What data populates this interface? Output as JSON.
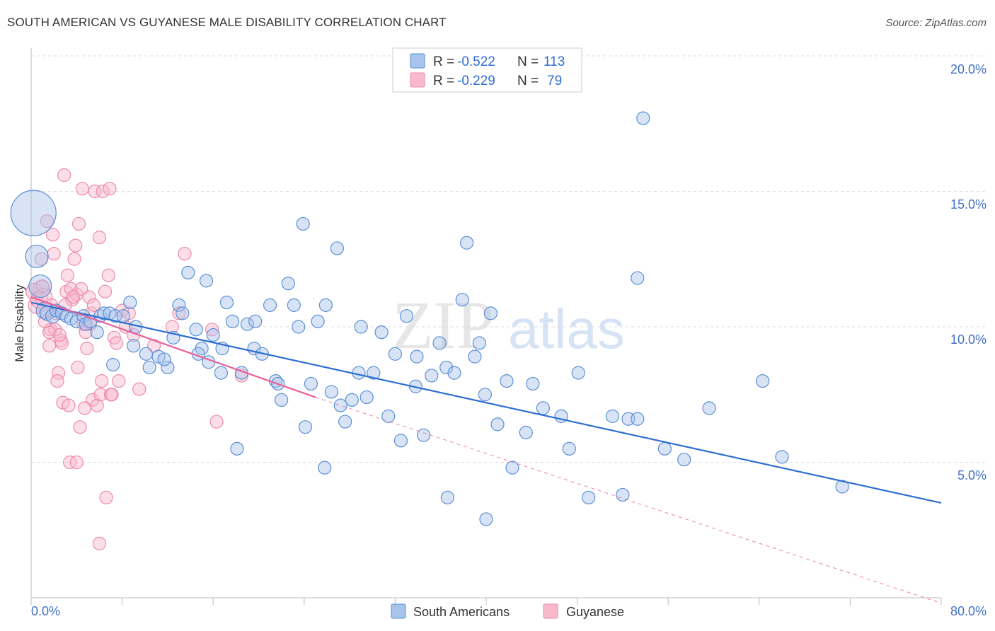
{
  "title": "SOUTH AMERICAN VS GUYANESE MALE DISABILITY CORRELATION CHART",
  "source": "Source: ZipAtlas.com",
  "watermark": {
    "zip": "ZIP",
    "atlas": "atlas"
  },
  "legend": {
    "r_label": "R =",
    "n_label": "N =",
    "rows": [
      {
        "series": "South Americans",
        "r": "-0.522",
        "n": "113"
      },
      {
        "series": "Guyanese",
        "r": "-0.229",
        "n": "79"
      }
    ]
  },
  "colors": {
    "south_americans_fill": "#a8c4ec",
    "south_americans_stroke": "#5b8fd6",
    "south_americans_line": "#2d6fd1",
    "guyanese_fill": "#f7b9cb",
    "guyanese_stroke": "#ee8aaa",
    "guyanese_line": "#e8609a",
    "axis_text": "#4472c4"
  },
  "chart_data": {
    "type": "scatter",
    "title": "SOUTH AMERICAN VS GUYANESE MALE DISABILITY CORRELATION CHART",
    "xlabel": "",
    "ylabel": "Male Disability",
    "xlim": [
      0,
      80
    ],
    "ylim": [
      0,
      20
    ],
    "x_tick_labels": [
      "0.0%",
      "80.0%"
    ],
    "y_tick_labels": [
      "5.0%",
      "10.0%",
      "15.0%",
      "20.0%"
    ],
    "y_ticks": [
      5,
      10,
      15,
      20
    ],
    "grid": true,
    "legend_position": "top-center",
    "series": [
      {
        "name": "South Americans",
        "r": -0.522,
        "n": 113,
        "trend": {
          "x": [
            0,
            80
          ],
          "y": [
            10.9,
            3.5
          ]
        },
        "points": [
          [
            0.2,
            14.2,
            32
          ],
          [
            0.5,
            12.6,
            16
          ],
          [
            0.8,
            11.5,
            16
          ],
          [
            1.2,
            10.6,
            12
          ],
          [
            1.4,
            10.5,
            10
          ],
          [
            1.9,
            10.4,
            10
          ],
          [
            2.2,
            10.6,
            9
          ],
          [
            2.7,
            10.5,
            9
          ],
          [
            3.1,
            10.4,
            9
          ],
          [
            3.5,
            10.3,
            9
          ],
          [
            4.0,
            10.2,
            9
          ],
          [
            4.6,
            10.4,
            9
          ],
          [
            4.8,
            10.1,
            9
          ],
          [
            5.2,
            10.2,
            9
          ],
          [
            6.1,
            10.4,
            9
          ],
          [
            6.4,
            10.5,
            9
          ],
          [
            6.9,
            10.5,
            9
          ],
          [
            7.4,
            10.4,
            9
          ],
          [
            8.1,
            10.4,
            9
          ],
          [
            8.7,
            10.9,
            9
          ],
          [
            9.0,
            9.3,
            9
          ],
          [
            9.2,
            10.0,
            9
          ],
          [
            10.1,
            9.0,
            9
          ],
          [
            11.2,
            8.9,
            9
          ],
          [
            12.0,
            8.5,
            9
          ],
          [
            12.5,
            9.6,
            9
          ],
          [
            13.0,
            10.8,
            9
          ],
          [
            13.3,
            10.5,
            9
          ],
          [
            13.8,
            12.0,
            9
          ],
          [
            14.5,
            9.9,
            9
          ],
          [
            15.0,
            9.2,
            9
          ],
          [
            15.4,
            11.7,
            9
          ],
          [
            15.6,
            8.7,
            9
          ],
          [
            16.0,
            9.7,
            9
          ],
          [
            16.7,
            8.3,
            9
          ],
          [
            17.2,
            10.9,
            9
          ],
          [
            17.7,
            10.2,
            9
          ],
          [
            18.5,
            8.3,
            9
          ],
          [
            19.0,
            10.1,
            9
          ],
          [
            19.6,
            9.2,
            9
          ],
          [
            20.3,
            9.0,
            9
          ],
          [
            21.0,
            10.8,
            9
          ],
          [
            21.5,
            8.0,
            9
          ],
          [
            22.0,
            7.3,
            9
          ],
          [
            22.6,
            11.6,
            9
          ],
          [
            23.1,
            10.8,
            9
          ],
          [
            23.5,
            10.0,
            9
          ],
          [
            23.9,
            13.8,
            9
          ],
          [
            24.6,
            7.9,
            9
          ],
          [
            25.2,
            10.2,
            9
          ],
          [
            25.9,
            10.8,
            9
          ],
          [
            26.4,
            7.6,
            9
          ],
          [
            26.9,
            12.9,
            9
          ],
          [
            27.6,
            6.5,
            9
          ],
          [
            28.2,
            7.3,
            9
          ],
          [
            29.0,
            10.0,
            9
          ],
          [
            29.5,
            7.4,
            9
          ],
          [
            30.1,
            8.3,
            9
          ],
          [
            30.8,
            9.8,
            9
          ],
          [
            31.4,
            6.7,
            9
          ],
          [
            32.0,
            9.0,
            9
          ],
          [
            32.5,
            5.8,
            9
          ],
          [
            33.0,
            10.4,
            9
          ],
          [
            33.8,
            7.8,
            9
          ],
          [
            34.5,
            6.0,
            9
          ],
          [
            35.2,
            8.2,
            9
          ],
          [
            35.9,
            9.4,
            9
          ],
          [
            36.5,
            8.5,
            9
          ],
          [
            37.2,
            8.3,
            9
          ],
          [
            37.9,
            11.0,
            9
          ],
          [
            38.3,
            13.1,
            9
          ],
          [
            39.0,
            8.9,
            9
          ],
          [
            39.4,
            9.4,
            9
          ],
          [
            39.9,
            7.5,
            9
          ],
          [
            40.4,
            10.5,
            9
          ],
          [
            41.0,
            6.4,
            9
          ],
          [
            41.8,
            8.0,
            9
          ],
          [
            42.3,
            4.8,
            9
          ],
          [
            43.5,
            6.1,
            9
          ],
          [
            44.1,
            7.9,
            9
          ],
          [
            45.0,
            7.0,
            9
          ],
          [
            47.3,
            5.5,
            9
          ],
          [
            48.1,
            8.3,
            9
          ],
          [
            49.0,
            3.7,
            9
          ],
          [
            51.1,
            6.7,
            9
          ],
          [
            52.5,
            6.6,
            9
          ],
          [
            53.3,
            11.8,
            9
          ],
          [
            55.7,
            5.5,
            9
          ],
          [
            57.4,
            5.1,
            9
          ],
          [
            59.6,
            7.0,
            9
          ],
          [
            64.3,
            8.0,
            9
          ],
          [
            66.0,
            5.2,
            9
          ],
          [
            71.3,
            4.1,
            9
          ],
          [
            53.8,
            17.7,
            9
          ],
          [
            53.3,
            6.6,
            9
          ],
          [
            40.0,
            2.9,
            9
          ],
          [
            36.6,
            3.7,
            9
          ],
          [
            27.2,
            7.1,
            9
          ],
          [
            25.8,
            4.8,
            9
          ],
          [
            19.7,
            10.2,
            9
          ],
          [
            21.7,
            7.9,
            9
          ],
          [
            14.7,
            9.0,
            9
          ],
          [
            33.9,
            8.9,
            9
          ],
          [
            18.1,
            5.5,
            9
          ],
          [
            24.1,
            6.3,
            9
          ],
          [
            46.6,
            6.7,
            9
          ],
          [
            52.0,
            3.8,
            9
          ],
          [
            16.8,
            9.2,
            9
          ],
          [
            10.4,
            8.5,
            9
          ],
          [
            7.2,
            8.6,
            9
          ],
          [
            11.7,
            8.8,
            9
          ],
          [
            5.8,
            9.8,
            9
          ],
          [
            28.8,
            8.3,
            9
          ]
        ]
      },
      {
        "name": "Guyanese",
        "r": -0.229,
        "n": 79,
        "trend": {
          "x": [
            0,
            25
          ],
          "y": [
            11.1,
            7.4
          ]
        },
        "trend_extension": {
          "x": [
            25,
            80
          ],
          "y": [
            7.4,
            -0.2
          ]
        },
        "points": [
          [
            0.3,
            11.3,
            12
          ],
          [
            0.5,
            10.8,
            12
          ],
          [
            0.7,
            11.0,
            12
          ],
          [
            0.9,
            11.4,
            12
          ],
          [
            1.1,
            11.1,
            12
          ],
          [
            1.3,
            10.6,
            10
          ],
          [
            1.4,
            13.9,
            9
          ],
          [
            1.6,
            9.3,
            9
          ],
          [
            1.7,
            9.9,
            9
          ],
          [
            1.9,
            13.4,
            9
          ],
          [
            2.0,
            12.7,
            9
          ],
          [
            2.2,
            10.5,
            9
          ],
          [
            2.4,
            8.3,
            9
          ],
          [
            2.6,
            9.5,
            9
          ],
          [
            2.8,
            7.2,
            9
          ],
          [
            2.9,
            15.6,
            9
          ],
          [
            3.1,
            11.3,
            9
          ],
          [
            3.2,
            11.9,
            9
          ],
          [
            3.3,
            7.1,
            9
          ],
          [
            3.4,
            5.0,
            9
          ],
          [
            3.6,
            11.0,
            9
          ],
          [
            3.8,
            12.5,
            9
          ],
          [
            3.9,
            13.0,
            9
          ],
          [
            4.0,
            11.2,
            9
          ],
          [
            4.1,
            8.5,
            9
          ],
          [
            4.2,
            13.8,
            9
          ],
          [
            4.3,
            6.3,
            9
          ],
          [
            4.5,
            15.1,
            9
          ],
          [
            4.6,
            10.1,
            9
          ],
          [
            4.8,
            9.8,
            9
          ],
          [
            4.9,
            9.2,
            9
          ],
          [
            5.1,
            11.1,
            9
          ],
          [
            5.3,
            10.5,
            9
          ],
          [
            5.4,
            7.3,
            9
          ],
          [
            5.6,
            15.0,
            9
          ],
          [
            5.8,
            7.1,
            9
          ],
          [
            6.0,
            13.3,
            9
          ],
          [
            6.1,
            7.5,
            9
          ],
          [
            6.3,
            15.0,
            9
          ],
          [
            6.5,
            11.3,
            9
          ],
          [
            6.6,
            3.7,
            9
          ],
          [
            6.8,
            11.9,
            9
          ],
          [
            6.9,
            15.1,
            9
          ],
          [
            7.0,
            7.5,
            9
          ],
          [
            7.3,
            9.6,
            9
          ],
          [
            7.5,
            9.4,
            9
          ],
          [
            7.7,
            8.0,
            9
          ],
          [
            8.0,
            10.6,
            9
          ],
          [
            8.3,
            10.0,
            9
          ],
          [
            9.0,
            9.7,
            9
          ],
          [
            9.5,
            7.7,
            9
          ],
          [
            10.8,
            9.3,
            9
          ],
          [
            12.4,
            10.0,
            9
          ],
          [
            13.0,
            10.5,
            9
          ],
          [
            15.9,
            9.9,
            9
          ],
          [
            16.3,
            6.5,
            9
          ],
          [
            18.5,
            8.2,
            9
          ],
          [
            13.5,
            12.7,
            9
          ],
          [
            6.0,
            2.0,
            9
          ],
          [
            4.0,
            5.0,
            9
          ],
          [
            2.1,
            9.9,
            9
          ],
          [
            1.6,
            9.8,
            9
          ],
          [
            2.7,
            9.4,
            9
          ],
          [
            0.9,
            12.5,
            9
          ],
          [
            1.2,
            10.2,
            9
          ],
          [
            3.5,
            11.4,
            9
          ],
          [
            4.4,
            11.4,
            9
          ],
          [
            5.2,
            10.1,
            9
          ],
          [
            2.5,
            9.7,
            9
          ],
          [
            3.0,
            10.8,
            9
          ],
          [
            1.8,
            10.8,
            9
          ],
          [
            2.3,
            8.0,
            9
          ],
          [
            3.7,
            11.1,
            9
          ],
          [
            4.7,
            7.0,
            9
          ],
          [
            5.5,
            10.8,
            9
          ],
          [
            6.2,
            8.0,
            9
          ],
          [
            7.1,
            7.5,
            9
          ],
          [
            8.6,
            10.5,
            9
          ],
          [
            1.0,
            11.5,
            9
          ]
        ]
      }
    ]
  }
}
